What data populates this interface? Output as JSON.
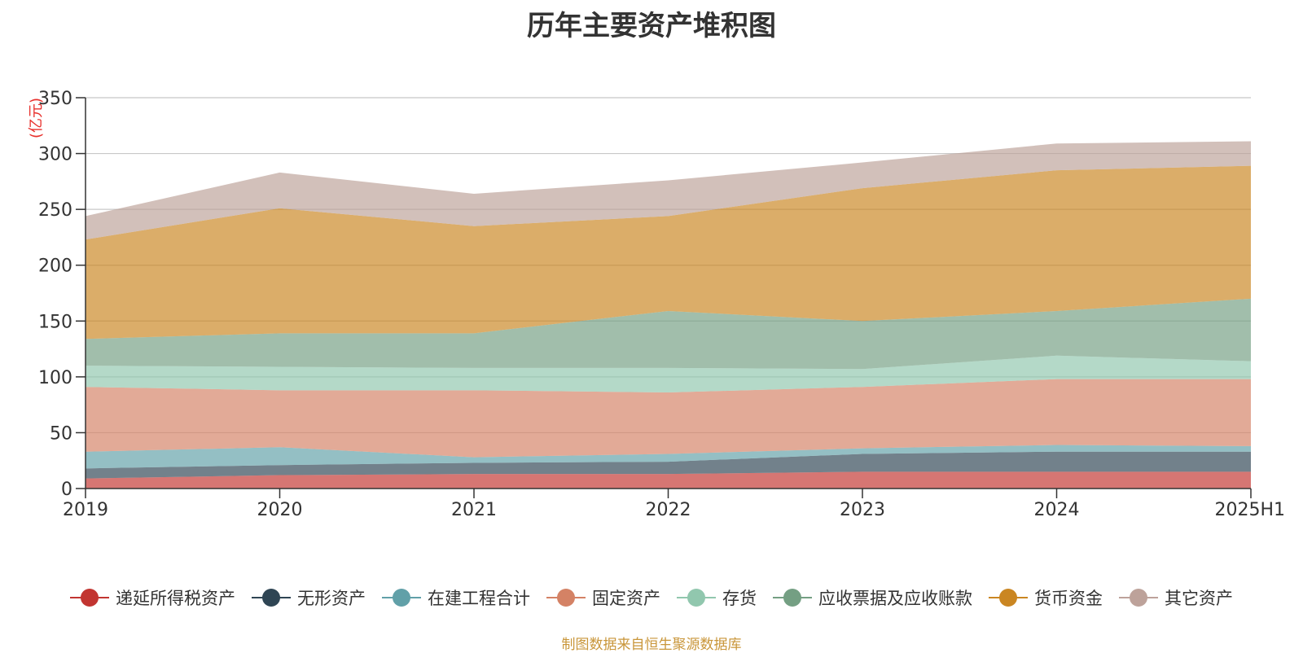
{
  "title": "历年主要资产堆积图",
  "source_note": "制图数据来自恒生聚源数据库",
  "chart_data": {
    "type": "area",
    "stacked": true,
    "title": "历年主要资产堆积图",
    "ylabel": "(亿元)",
    "xlabel": "",
    "categories": [
      "2019",
      "2020",
      "2021",
      "2022",
      "2023",
      "2024",
      "2025H1"
    ],
    "ylim": [
      0,
      350
    ],
    "yticks": [
      0,
      50,
      100,
      150,
      200,
      250,
      300,
      350
    ],
    "grid": true,
    "legend_position": "bottom",
    "series": [
      {
        "name": "递延所得税资产",
        "color": "#c23531",
        "values": [
          9,
          12,
          13,
          13,
          15,
          15,
          15
        ]
      },
      {
        "name": "无形资产",
        "color": "#2f4554",
        "values": [
          9,
          9,
          10,
          11,
          16,
          18,
          18
        ]
      },
      {
        "name": "在建工程合计",
        "color": "#61a0a8",
        "values": [
          15,
          16,
          5,
          7,
          5,
          6,
          5
        ]
      },
      {
        "name": "固定资产",
        "color": "#d48265",
        "values": [
          58,
          51,
          60,
          55,
          55,
          59,
          60
        ]
      },
      {
        "name": "存货",
        "color": "#91c7ae",
        "values": [
          19,
          21,
          20,
          22,
          16,
          21,
          16
        ]
      },
      {
        "name": "应收票据及应收账款",
        "color": "#749f83",
        "values": [
          24,
          30,
          31,
          51,
          43,
          40,
          56
        ]
      },
      {
        "name": "货币资金",
        "color": "#ca8622",
        "values": [
          89,
          112,
          96,
          85,
          119,
          126,
          119
        ]
      },
      {
        "name": "其它资产",
        "color": "#bda29a",
        "values": [
          21,
          32,
          29,
          32,
          23,
          24,
          22
        ]
      }
    ]
  }
}
